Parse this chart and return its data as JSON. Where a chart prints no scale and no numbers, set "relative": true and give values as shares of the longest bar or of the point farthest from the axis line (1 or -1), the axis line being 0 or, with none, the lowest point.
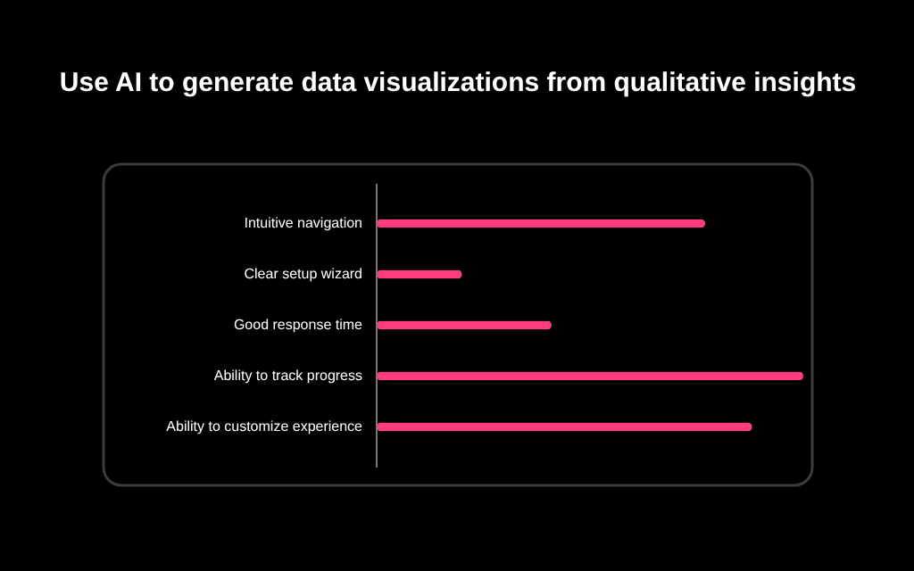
{
  "chart_data": {
    "type": "bar",
    "orientation": "horizontal",
    "relative": true,
    "title": "Use AI to generate data visualizations from qualitative insights",
    "categories": [
      "Intuitive navigation",
      "Clear setup wizard",
      "Good response time",
      "Ability to track progress",
      "Ability to customize experience"
    ],
    "values": [
      0.77,
      0.2,
      0.41,
      1,
      0.88
    ],
    "color": "#ff3d7f"
  }
}
